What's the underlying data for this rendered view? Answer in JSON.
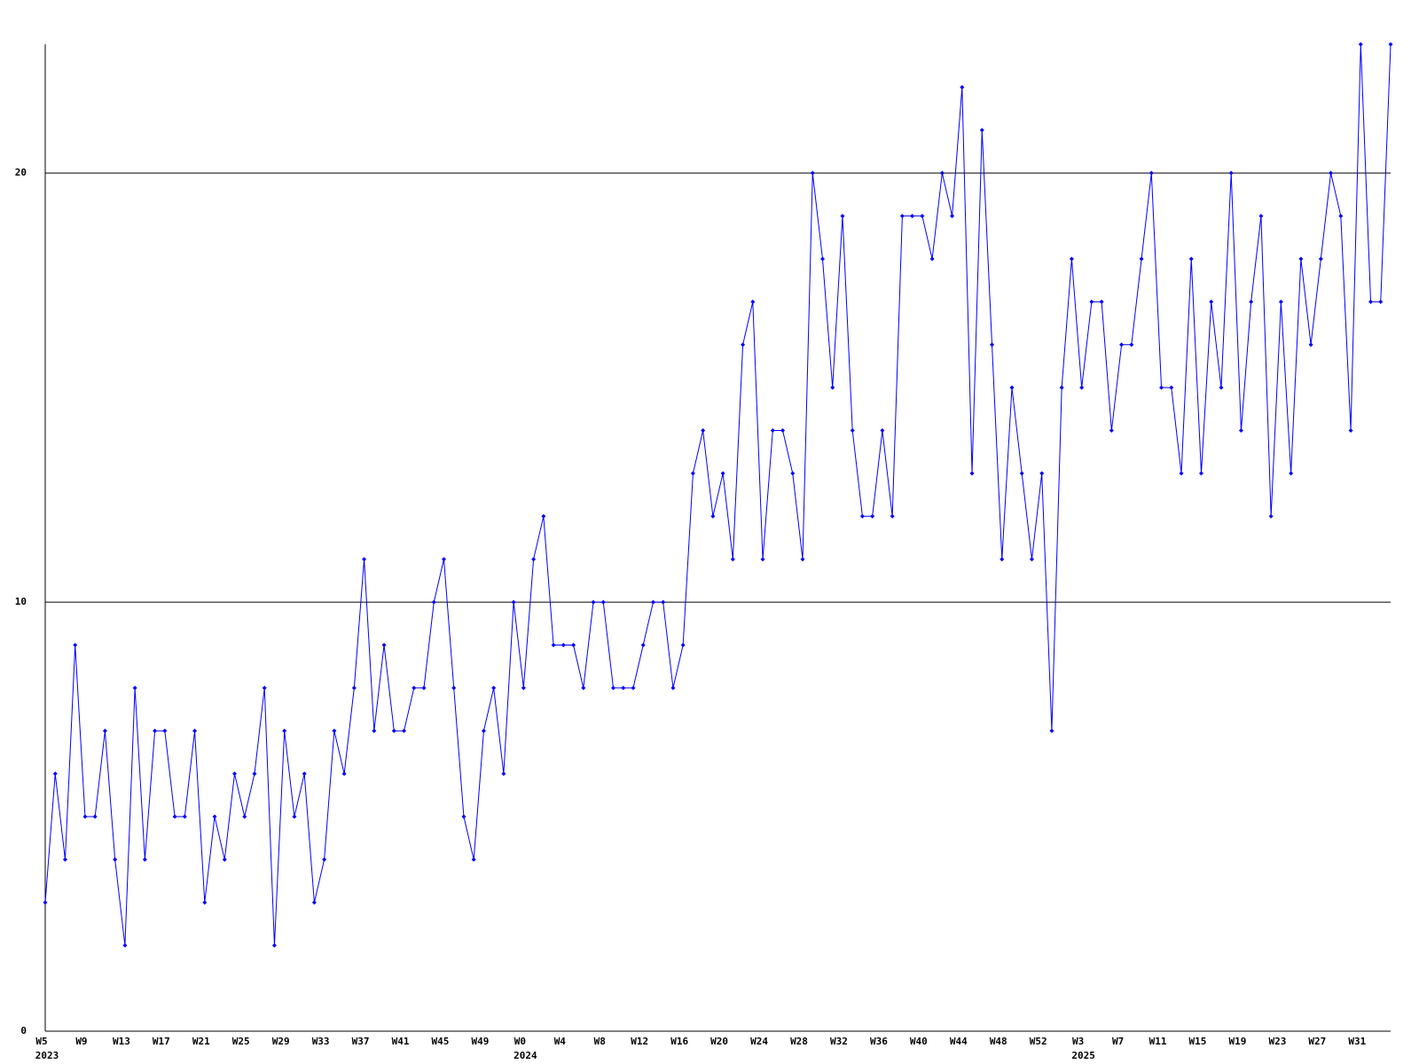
{
  "chart_data": {
    "type": "line",
    "categories": [
      "W5",
      null,
      null,
      null,
      "W9",
      null,
      null,
      null,
      "W13",
      null,
      null,
      null,
      "W17",
      null,
      null,
      null,
      "W21",
      null,
      null,
      null,
      "W25",
      null,
      null,
      null,
      "W29",
      null,
      null,
      null,
      "W33",
      null,
      null,
      null,
      "W37",
      null,
      null,
      null,
      "W41",
      null,
      null,
      null,
      "W45",
      null,
      null,
      null,
      "W49",
      null,
      null,
      null,
      "W0",
      null,
      null,
      null,
      "W4",
      null,
      null,
      null,
      "W8",
      null,
      null,
      null,
      "W12",
      null,
      null,
      null,
      "W16",
      null,
      null,
      null,
      "W20",
      null,
      null,
      null,
      "W24",
      null,
      null,
      null,
      "W28",
      null,
      null,
      null,
      "W32",
      null,
      null,
      null,
      "W36",
      null,
      null,
      null,
      "W40",
      null,
      null,
      null,
      "W44",
      null,
      null,
      null,
      "W48",
      null,
      null,
      null,
      "W52",
      null,
      null,
      null,
      "W3",
      null,
      null,
      null,
      "W7",
      null,
      null,
      null,
      "W11",
      null,
      null,
      null,
      "W15",
      null,
      null,
      null,
      "W19",
      null,
      null,
      null,
      "W23",
      null,
      null,
      null,
      "W27",
      null,
      null,
      null,
      "W31",
      null,
      null,
      null
    ],
    "category_years": [
      "2023",
      null,
      null,
      null,
      null,
      null,
      null,
      null,
      null,
      null,
      null,
      null,
      null,
      null,
      null,
      null,
      null,
      null,
      null,
      null,
      null,
      null,
      null,
      null,
      null,
      null,
      null,
      null,
      null,
      null,
      null,
      null,
      null,
      null,
      null,
      null,
      null,
      null,
      null,
      null,
      null,
      null,
      null,
      null,
      null,
      null,
      null,
      null,
      "2024",
      null,
      null,
      null,
      null,
      null,
      null,
      null,
      null,
      null,
      null,
      null,
      null,
      null,
      null,
      null,
      null,
      null,
      null,
      null,
      null,
      null,
      null,
      null,
      null,
      null,
      null,
      null,
      null,
      null,
      null,
      null,
      null,
      null,
      null,
      null,
      null,
      null,
      null,
      null,
      null,
      null,
      null,
      null,
      null,
      null,
      null,
      null,
      null,
      null,
      null,
      null,
      null,
      null,
      null,
      null,
      "2025",
      null,
      null,
      null,
      null,
      null,
      null,
      null,
      null,
      null,
      null,
      null,
      null,
      null,
      null,
      null,
      null,
      null,
      null,
      null,
      null,
      null,
      null,
      null,
      null,
      null,
      null,
      null,
      null,
      null,
      null,
      null
    ],
    "values": [
      3,
      6,
      4,
      9,
      5,
      5,
      7,
      4,
      2,
      8,
      4,
      7,
      7,
      5,
      5,
      7,
      3,
      5,
      4,
      6,
      5,
      6,
      8,
      2,
      7,
      5,
      6,
      3,
      4,
      7,
      6,
      8,
      11,
      7,
      9,
      7,
      7,
      8,
      8,
      10,
      11,
      8,
      5,
      4,
      7,
      8,
      6,
      10,
      8,
      11,
      12,
      9,
      9,
      9,
      8,
      10,
      10,
      8,
      8,
      8,
      9,
      10,
      10,
      8,
      9,
      13,
      14,
      12,
      13,
      11,
      16,
      17,
      11,
      14,
      14,
      13,
      11,
      20,
      18,
      15,
      19,
      14,
      12,
      12,
      14,
      12,
      19,
      19,
      19,
      18,
      20,
      19,
      22,
      13,
      21,
      16,
      11,
      15,
      13,
      11,
      13,
      7,
      15,
      18,
      15,
      17,
      17,
      14,
      16,
      16,
      18,
      20,
      15,
      15,
      13,
      18,
      13,
      17,
      15,
      20,
      14,
      17,
      19,
      12,
      17,
      13,
      18,
      16,
      18,
      20,
      19,
      14,
      23,
      17,
      17,
      23
    ],
    "color": "#0000ff",
    "ylim": [
      0,
      23
    ],
    "yticks": [
      0,
      10,
      20
    ],
    "grid": true
  }
}
